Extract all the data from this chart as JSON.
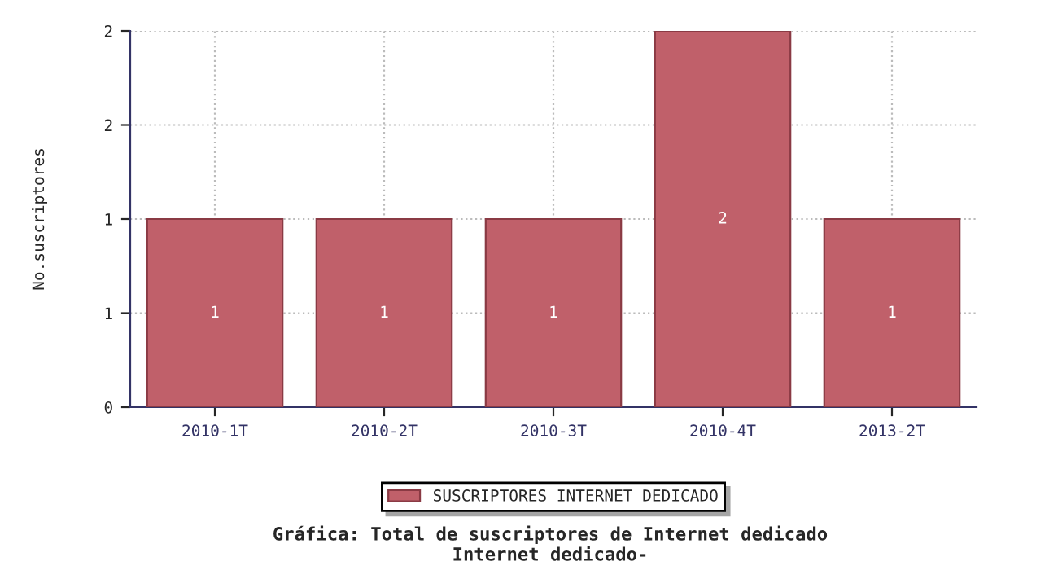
{
  "chart_data": {
    "type": "bar",
    "title": "Gráfica: Total de suscriptores de Internet dedicado\nInternet dedicado-",
    "ylabel": "No.suscriptores",
    "categories": [
      "2010-1T",
      "2010-2T",
      "2010-3T",
      "2010-4T",
      "2013-2T"
    ],
    "series": [
      {
        "name": "SUSCRIPTORES INTERNET DEDICADO",
        "color": "#c0606a",
        "values": [
          1,
          1,
          1,
          2,
          1
        ]
      }
    ],
    "ylim": [
      0,
      2
    ],
    "yticks": [
      0,
      {
        "value": 0.5,
        "label": "1"
      },
      1,
      {
        "value": 1.5,
        "label": "2"
      },
      2
    ],
    "data_labels": true,
    "grid": true,
    "legend": "bottom"
  }
}
